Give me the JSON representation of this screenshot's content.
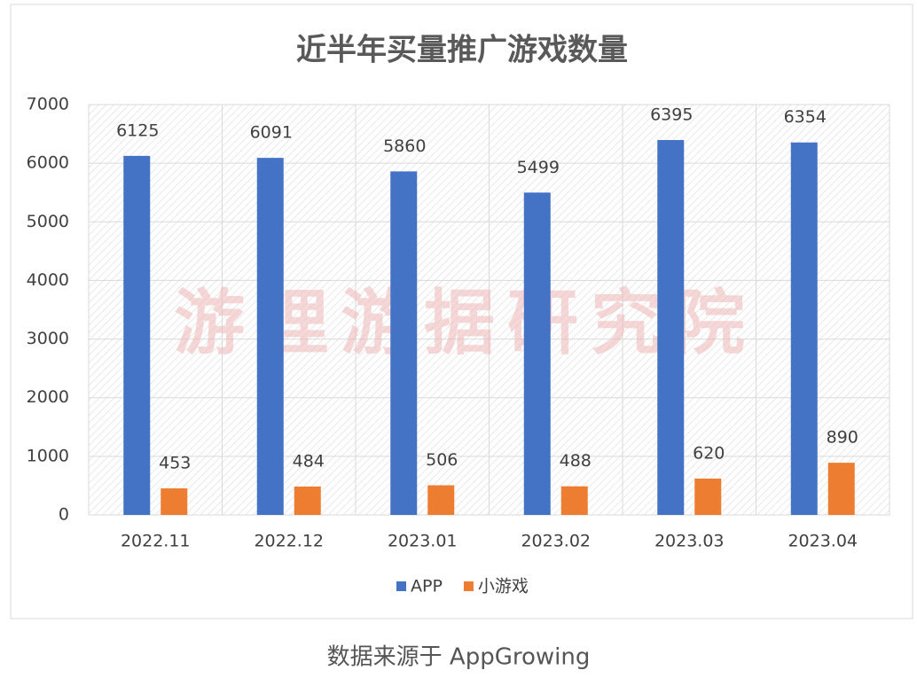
{
  "chart_data": {
    "type": "bar",
    "title": "近半年买量推广游戏数量",
    "categories": [
      "2022.11",
      "2022.12",
      "2023.01",
      "2023.02",
      "2023.03",
      "2023.04"
    ],
    "series": [
      {
        "name": "APP",
        "color": "#4472c4",
        "values": [
          6125,
          6091,
          5860,
          5499,
          6395,
          6354
        ]
      },
      {
        "name": "小游戏",
        "color": "#ed7d31",
        "values": [
          453,
          484,
          506,
          488,
          620,
          890
        ]
      }
    ],
    "ylim": [
      0,
      7000
    ],
    "yticks": [
      0,
      1000,
      2000,
      3000,
      4000,
      5000,
      6000,
      7000
    ],
    "grid": true,
    "legend": "bottom",
    "watermark": "游理游据研究院"
  },
  "caption": "数据来源于 AppGrowing"
}
